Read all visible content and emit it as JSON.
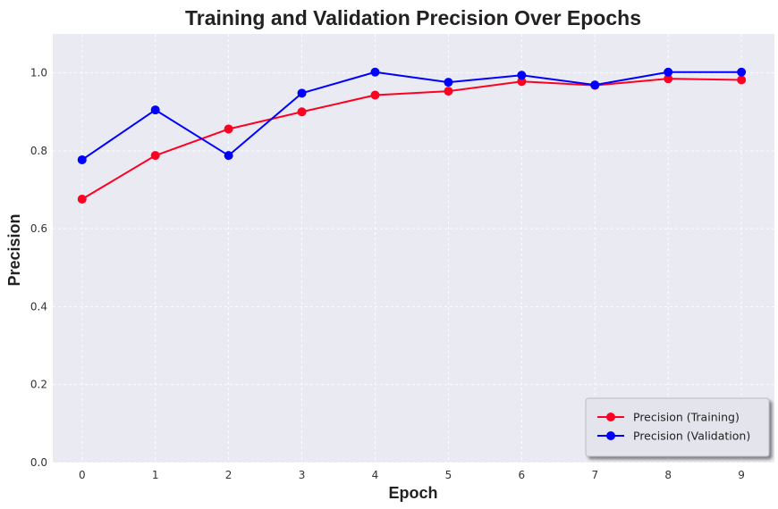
{
  "chart_data": {
    "type": "line",
    "title": "Training and Validation Precision Over Epochs",
    "xlabel": "Epoch",
    "ylabel": "Precision",
    "x": [
      0,
      1,
      2,
      3,
      4,
      5,
      6,
      7,
      8,
      9
    ],
    "xticks": [
      "0",
      "1",
      "2",
      "3",
      "4",
      "5",
      "6",
      "7",
      "8",
      "9"
    ],
    "yticks": [
      "0.0",
      "0.2",
      "0.4",
      "0.6",
      "0.8",
      "1.0"
    ],
    "xlim": [
      -0.4,
      9.45
    ],
    "ylim": [
      0.0,
      1.1
    ],
    "grid": true,
    "legend_position": "bottom-right",
    "series": [
      {
        "name": "Precision (Training)",
        "color": "#ff0022",
        "values": [
          0.676,
          0.788,
          0.856,
          0.9,
          0.943,
          0.953,
          0.978,
          0.968,
          0.985,
          0.982
        ]
      },
      {
        "name": "Precision (Validation)",
        "color": "#0000ff",
        "values": [
          0.777,
          0.905,
          0.788,
          0.948,
          1.002,
          0.976,
          0.994,
          0.969,
          1.002,
          1.002
        ]
      }
    ]
  }
}
